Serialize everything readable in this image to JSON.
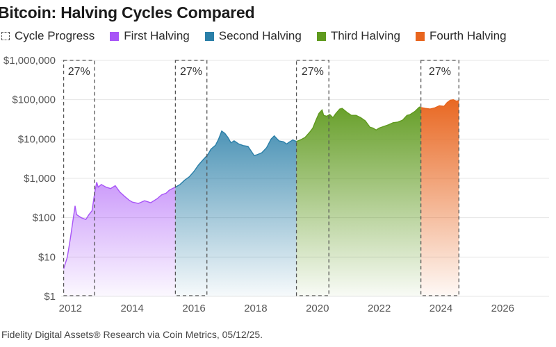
{
  "title": "Bitcoin: Halving Cycles Compared",
  "source": "Fidelity Digital Assets® Research via Coin Metrics, 05/12/25.",
  "legend": [
    {
      "label": "Cycle Progress",
      "color": "#555555",
      "kind": "dashed-box"
    },
    {
      "label": "First Halving",
      "color": "#a855f7",
      "kind": "swatch"
    },
    {
      "label": "Second Halving",
      "color": "#2a7fa8",
      "kind": "swatch"
    },
    {
      "label": "Third Halving",
      "color": "#5f9a1e",
      "kind": "swatch"
    },
    {
      "label": "Fourth Halving",
      "color": "#e8651e",
      "kind": "swatch"
    }
  ],
  "chart_data": {
    "type": "area",
    "title": "Bitcoin: Halving Cycles Compared",
    "xlabel": "",
    "ylabel": "",
    "y_scale": "log",
    "ylim": [
      1,
      1000000
    ],
    "xlim": [
      2011.7,
      2027.5
    ],
    "y_ticks": [
      1,
      10,
      100,
      1000,
      10000,
      100000,
      1000000
    ],
    "y_tick_labels": [
      "$1",
      "$10",
      "$100",
      "$1,000",
      "$10,000",
      "$100,000",
      "$1,000,000"
    ],
    "x_ticks": [
      2012,
      2014,
      2016,
      2018,
      2020,
      2022,
      2024,
      2026
    ],
    "x_tick_labels": [
      "2012",
      "2014",
      "2016",
      "2018",
      "2020",
      "2022",
      "2024",
      "2026"
    ],
    "grid": true,
    "legend_position": "top",
    "series": [
      {
        "name": "First Halving",
        "color": "#a855f7",
        "points": [
          [
            2011.78,
            5
          ],
          [
            2011.9,
            10
          ],
          [
            2012.0,
            30
          ],
          [
            2012.15,
            200
          ],
          [
            2012.2,
            120
          ],
          [
            2012.35,
            100
          ],
          [
            2012.5,
            90
          ],
          [
            2012.6,
            120
          ],
          [
            2012.7,
            150
          ],
          [
            2012.78,
            400
          ],
          [
            2012.85,
            800
          ],
          [
            2012.9,
            600
          ],
          [
            2013.0,
            700
          ],
          [
            2013.15,
            600
          ],
          [
            2013.3,
            550
          ],
          [
            2013.45,
            650
          ],
          [
            2013.6,
            450
          ],
          [
            2013.75,
            350
          ],
          [
            2013.9,
            280
          ],
          [
            2014.0,
            250
          ],
          [
            2014.2,
            230
          ],
          [
            2014.4,
            270
          ],
          [
            2014.6,
            240
          ],
          [
            2014.8,
            300
          ],
          [
            2014.95,
            380
          ],
          [
            2015.1,
            420
          ],
          [
            2015.2,
            500
          ],
          [
            2015.3,
            550
          ],
          [
            2015.4,
            600
          ]
        ]
      },
      {
        "name": "Second Halving",
        "color": "#2a7fa8",
        "points": [
          [
            2015.4,
            600
          ],
          [
            2015.55,
            700
          ],
          [
            2015.7,
            900
          ],
          [
            2015.85,
            1100
          ],
          [
            2016.0,
            1500
          ],
          [
            2016.15,
            2200
          ],
          [
            2016.3,
            3000
          ],
          [
            2016.45,
            4000
          ],
          [
            2016.55,
            5500
          ],
          [
            2016.7,
            7000
          ],
          [
            2016.8,
            10000
          ],
          [
            2016.9,
            16000
          ],
          [
            2017.0,
            14000
          ],
          [
            2017.1,
            11000
          ],
          [
            2017.2,
            8000
          ],
          [
            2017.3,
            9000
          ],
          [
            2017.45,
            7500
          ],
          [
            2017.6,
            6800
          ],
          [
            2017.75,
            6500
          ],
          [
            2017.85,
            5000
          ],
          [
            2017.95,
            3800
          ],
          [
            2018.05,
            4000
          ],
          [
            2018.2,
            4500
          ],
          [
            2018.35,
            6000
          ],
          [
            2018.5,
            10000
          ],
          [
            2018.6,
            12000
          ],
          [
            2018.75,
            9000
          ],
          [
            2018.9,
            8500
          ],
          [
            2019.0,
            7500
          ],
          [
            2019.1,
            8500
          ],
          [
            2019.2,
            9500
          ],
          [
            2019.32,
            8700
          ]
        ]
      },
      {
        "name": "Third Halving",
        "color": "#5f9a1e",
        "points": [
          [
            2019.32,
            8700
          ],
          [
            2019.45,
            9500
          ],
          [
            2019.6,
            11000
          ],
          [
            2019.75,
            15000
          ],
          [
            2019.85,
            19000
          ],
          [
            2019.95,
            30000
          ],
          [
            2020.05,
            45000
          ],
          [
            2020.15,
            55000
          ],
          [
            2020.2,
            40000
          ],
          [
            2020.3,
            38000
          ],
          [
            2020.4,
            42000
          ],
          [
            2020.5,
            35000
          ],
          [
            2020.6,
            45000
          ],
          [
            2020.72,
            58000
          ],
          [
            2020.8,
            60000
          ],
          [
            2020.95,
            48000
          ],
          [
            2021.1,
            40000
          ],
          [
            2021.25,
            40000
          ],
          [
            2021.4,
            35000
          ],
          [
            2021.55,
            29000
          ],
          [
            2021.7,
            20000
          ],
          [
            2021.8,
            19000
          ],
          [
            2021.9,
            17000
          ],
          [
            2022.0,
            19000
          ],
          [
            2022.15,
            21000
          ],
          [
            2022.3,
            23000
          ],
          [
            2022.45,
            26000
          ],
          [
            2022.6,
            27000
          ],
          [
            2022.75,
            30000
          ],
          [
            2022.9,
            40000
          ],
          [
            2023.0,
            42000
          ],
          [
            2023.15,
            50000
          ],
          [
            2023.3,
            65000
          ],
          [
            2023.35,
            63000
          ]
        ]
      },
      {
        "name": "Fourth Halving",
        "color": "#e8651e",
        "points": [
          [
            2023.35,
            63000
          ],
          [
            2023.5,
            60000
          ],
          [
            2023.65,
            58000
          ],
          [
            2023.8,
            62000
          ],
          [
            2023.95,
            70000
          ],
          [
            2024.1,
            68000
          ],
          [
            2024.2,
            85000
          ],
          [
            2024.3,
            97000
          ],
          [
            2024.4,
            100000
          ],
          [
            2024.5,
            92000
          ],
          [
            2024.58,
            95000
          ]
        ]
      }
    ],
    "cycle_progress_boxes": [
      {
        "start": 2011.78,
        "end": 2012.78,
        "label": "27%"
      },
      {
        "start": 2015.4,
        "end": 2016.42,
        "label": "27%"
      },
      {
        "start": 2019.32,
        "end": 2020.37,
        "label": "27%"
      },
      {
        "start": 2023.35,
        "end": 2024.58,
        "label": "27%"
      }
    ]
  }
}
